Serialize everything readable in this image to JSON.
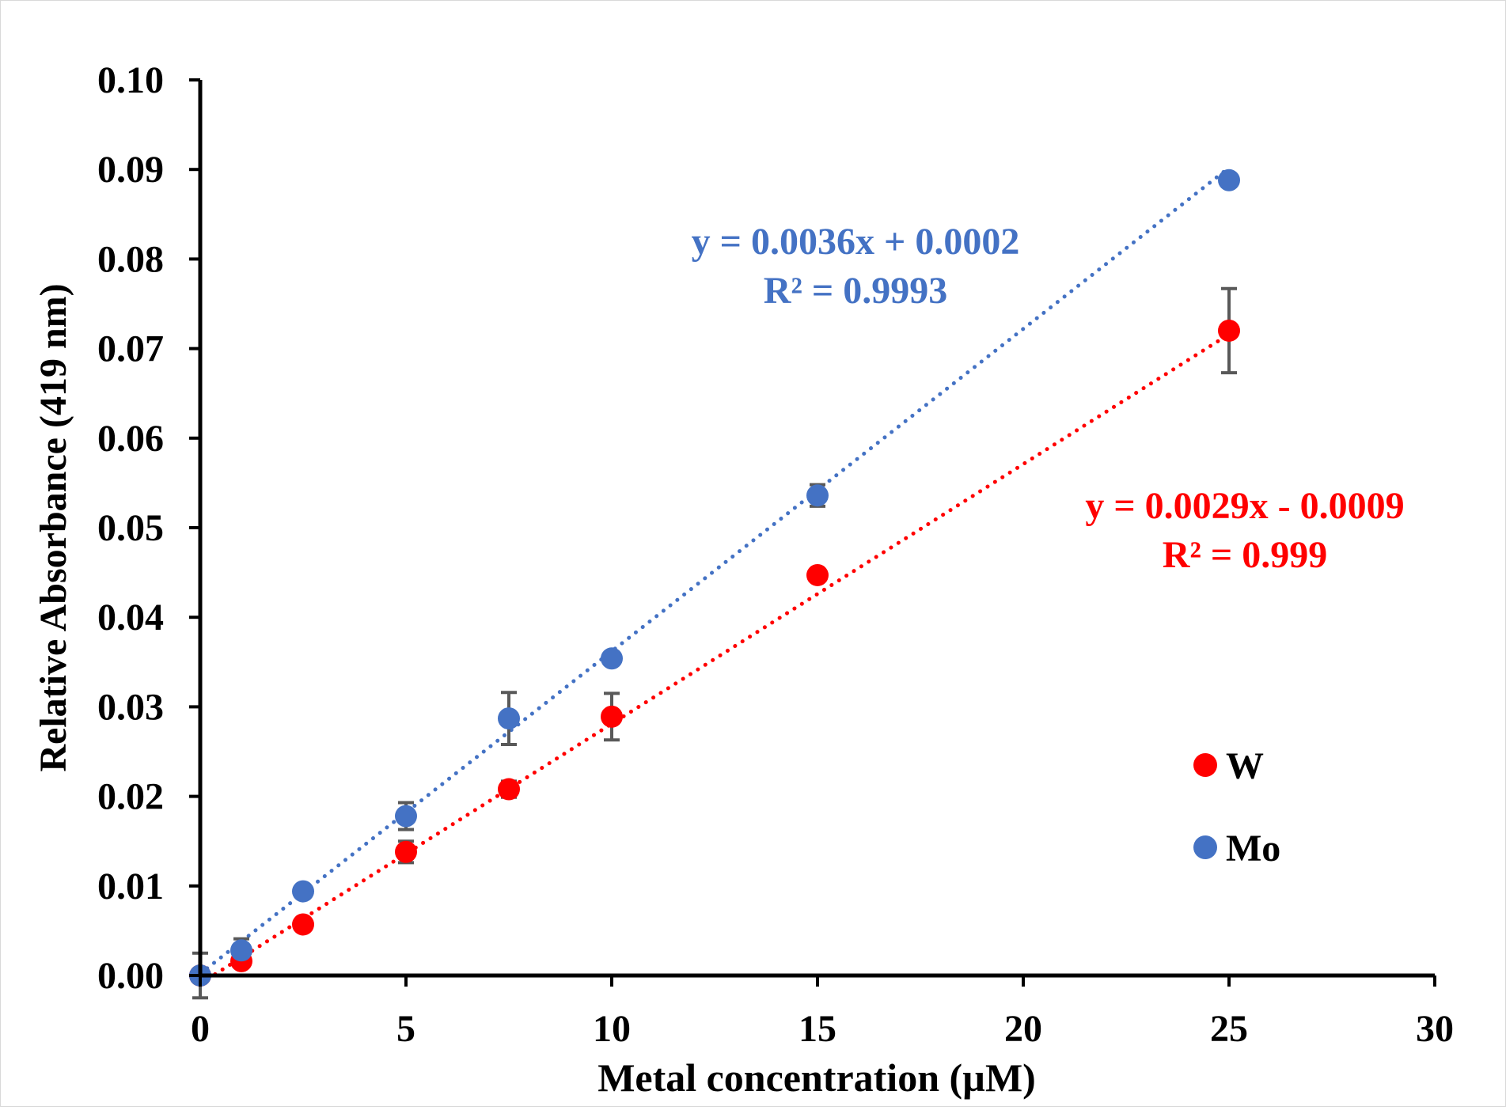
{
  "chart_data": {
    "type": "scatter",
    "xlabel": "Metal concentration (µM)",
    "ylabel": "Relative Absorbance (419 nm)",
    "xlim": [
      0,
      30
    ],
    "ylim": [
      0,
      0.1
    ],
    "x_ticks": [
      "0",
      "5",
      "10",
      "15",
      "20",
      "25",
      "30"
    ],
    "y_ticks": [
      "0.00",
      "0.01",
      "0.02",
      "0.03",
      "0.04",
      "0.05",
      "0.06",
      "0.07",
      "0.08",
      "0.09",
      "0.10"
    ],
    "grid": false,
    "legend_position": "right",
    "series": [
      {
        "name": "W",
        "color": "#ff0000",
        "x": [
          0,
          1,
          2.5,
          5,
          7.5,
          10,
          15,
          25
        ],
        "y": [
          0.0,
          0.0016,
          0.0057,
          0.0138,
          0.0208,
          0.0289,
          0.0447,
          0.072
        ],
        "error": [
          0.0,
          0.0006,
          0.0005,
          0.0012,
          0.0009,
          0.0026,
          0.0006,
          0.0047
        ],
        "trendline": {
          "slope": 0.0029,
          "intercept": -0.0009,
          "x_range": [
            0,
            25
          ]
        },
        "equation": "y = 0.0029x - 0.0009",
        "r2": "R² = 0.999"
      },
      {
        "name": "Mo",
        "color": "#4472c4",
        "x": [
          0,
          1,
          2.5,
          5,
          7.5,
          10,
          15,
          25
        ],
        "y": [
          0.0,
          0.0028,
          0.0094,
          0.0178,
          0.0287,
          0.0354,
          0.0536,
          0.0888
        ],
        "error": [
          0.0025,
          0.0013,
          0.0005,
          0.0015,
          0.0029,
          0.0005,
          0.0012,
          0.0005
        ],
        "trendline": {
          "slope": 0.0036,
          "intercept": 0.0002,
          "x_range": [
            0,
            25
          ]
        },
        "equation": "y = 0.0036x + 0.0002",
        "r2": "R² = 0.9993"
      }
    ]
  }
}
